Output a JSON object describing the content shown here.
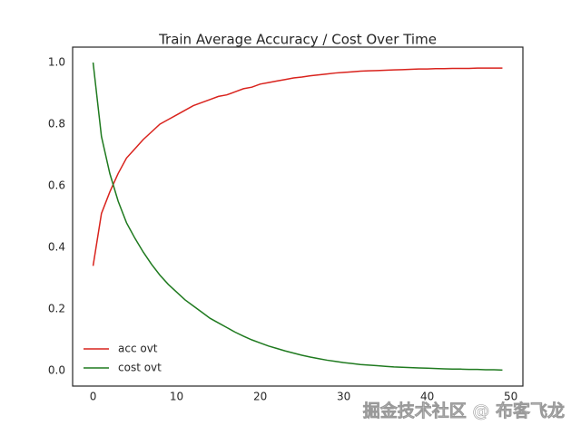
{
  "chart_data": {
    "type": "line",
    "title": "Train Average Accuracy / Cost Over Time",
    "x": [
      0,
      1,
      2,
      3,
      4,
      5,
      6,
      7,
      8,
      9,
      10,
      11,
      12,
      13,
      14,
      15,
      16,
      17,
      18,
      19,
      20,
      21,
      22,
      23,
      24,
      25,
      26,
      27,
      28,
      29,
      30,
      31,
      32,
      33,
      34,
      35,
      36,
      37,
      38,
      39,
      40,
      41,
      42,
      43,
      44,
      45,
      46,
      47,
      48,
      49
    ],
    "series": [
      {
        "name": "acc ovt",
        "color": "#d9231d",
        "values": [
          0.34,
          0.51,
          0.58,
          0.64,
          0.69,
          0.72,
          0.75,
          0.775,
          0.8,
          0.815,
          0.83,
          0.845,
          0.86,
          0.87,
          0.88,
          0.89,
          0.895,
          0.905,
          0.915,
          0.92,
          0.93,
          0.935,
          0.94,
          0.945,
          0.95,
          0.953,
          0.957,
          0.96,
          0.963,
          0.966,
          0.968,
          0.97,
          0.972,
          0.973,
          0.974,
          0.975,
          0.976,
          0.977,
          0.978,
          0.979,
          0.979,
          0.98,
          0.98,
          0.981,
          0.981,
          0.981,
          0.982,
          0.982,
          0.982,
          0.982
        ]
      },
      {
        "name": "cost ovt",
        "color": "#1f7a1f",
        "values": [
          1.0,
          0.76,
          0.64,
          0.55,
          0.48,
          0.43,
          0.385,
          0.345,
          0.31,
          0.28,
          0.255,
          0.23,
          0.21,
          0.19,
          0.17,
          0.155,
          0.14,
          0.125,
          0.112,
          0.1,
          0.09,
          0.08,
          0.072,
          0.064,
          0.057,
          0.05,
          0.044,
          0.039,
          0.034,
          0.03,
          0.026,
          0.023,
          0.02,
          0.018,
          0.016,
          0.014,
          0.012,
          0.011,
          0.01,
          0.009,
          0.008,
          0.007,
          0.006,
          0.005,
          0.005,
          0.004,
          0.004,
          0.003,
          0.003,
          0.002
        ]
      }
    ],
    "xlim": [
      -2.45,
      51.45
    ],
    "xticks": [
      0,
      10,
      20,
      30,
      40,
      50
    ],
    "ylim": [
      -0.05,
      1.05
    ],
    "yticks": [
      {
        "value": 0,
        "label": "0.0"
      },
      0.2,
      0.4,
      0.6,
      0.8,
      {
        "value": 1,
        "label": "1.0"
      }
    ],
    "grid": false,
    "legend": "lower left",
    "annotation": "掘金技术社区 @ 布客飞龙"
  }
}
